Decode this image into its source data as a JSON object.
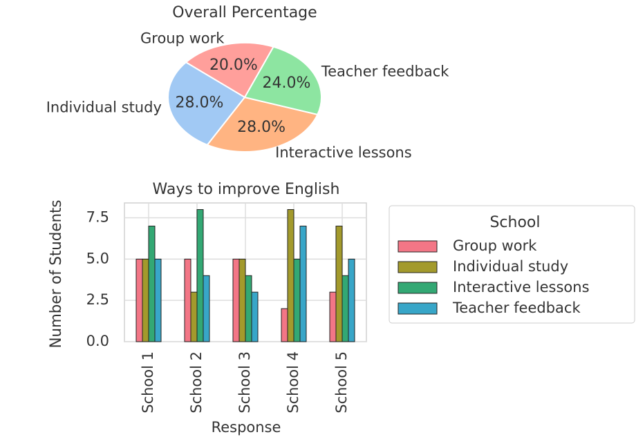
{
  "chart_data": [
    {
      "type": "pie",
      "title": "Overall Percentage",
      "categories": [
        "Group work",
        "Individual study",
        "Interactive lessons",
        "Teacher feedback"
      ],
      "values": [
        20,
        28,
        28,
        24
      ],
      "value_labels": [
        "20.0%",
        "28.0%",
        "28.0%",
        "24.0%"
      ],
      "colors": [
        "#ff9f9b",
        "#a1c9f4",
        "#ffb482",
        "#8de5a1"
      ]
    },
    {
      "type": "bar",
      "title": "Ways to improve English",
      "x_label": "Response",
      "y_label": "Number of Students",
      "categories": [
        "School 1",
        "School 2",
        "School 3",
        "School 4",
        "School 5"
      ],
      "series": [
        {
          "name": "Group work",
          "color": "#f37686",
          "values": [
            5,
            5,
            5,
            2,
            3
          ]
        },
        {
          "name": "Individual study",
          "color": "#a39a2c",
          "values": [
            5,
            3,
            5,
            8,
            7
          ]
        },
        {
          "name": "Interactive lessons",
          "color": "#33a874",
          "values": [
            7,
            8,
            4,
            5,
            4
          ]
        },
        {
          "name": "Teacher feedback",
          "color": "#38a6c8",
          "values": [
            5,
            4,
            3,
            7,
            5
          ]
        }
      ],
      "ylim": [
        0,
        8.4
      ],
      "yticks": [
        {
          "value": 0,
          "label": "0.0"
        },
        {
          "value": 2.5,
          "label": "2.5"
        },
        {
          "value": 5,
          "label": "5.0"
        },
        {
          "value": 7.5,
          "label": "7.5"
        }
      ],
      "grid": true,
      "legend_title": "School",
      "legend": "outside right"
    }
  ]
}
